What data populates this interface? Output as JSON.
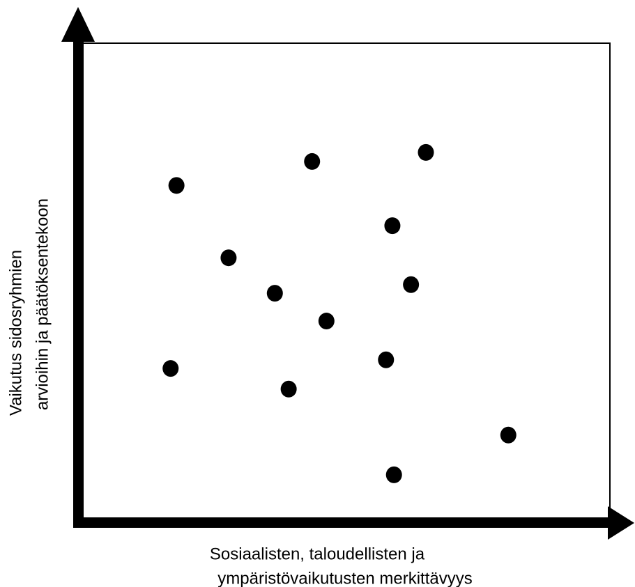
{
  "chart_data": {
    "type": "scatter",
    "xlabel": [
      "Sosiaalisten, taloudellisten ja",
      "ympäristövaikutusten merkittävyys"
    ],
    "ylabel": [
      "Vaikutus sidosryhmien",
      "arvioihin ja päätöksentekoon"
    ],
    "x": [
      18.5,
      44.0,
      65.4,
      59.1,
      28.3,
      37.0,
      62.6,
      46.7,
      17.4,
      57.9,
      39.6,
      80.9,
      59.4
    ],
    "values": [
      70.3,
      75.3,
      77.2,
      61.9,
      55.2,
      47.8,
      49.6,
      42.0,
      32.1,
      33.9,
      27.8,
      18.2,
      9.9
    ],
    "color": "#000000",
    "xlim": [
      0,
      100
    ],
    "ylim": [
      0,
      100
    ]
  }
}
